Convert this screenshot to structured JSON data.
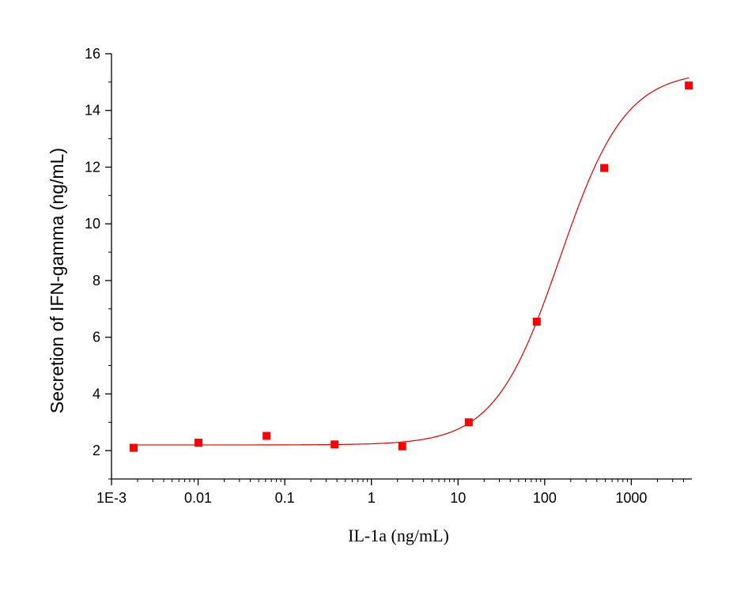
{
  "chart_data": {
    "type": "scatter",
    "title": "",
    "xlabel": "IL-1a (ng/mL)",
    "ylabel": "Secretion of IFN-gamma (ng/mL)",
    "x_scale": "log",
    "xlim": [
      0.001,
      5000
    ],
    "ylim": [
      1,
      16
    ],
    "x_ticks": [
      0.001,
      0.01,
      0.1,
      1,
      10,
      100,
      1000
    ],
    "x_tick_labels": [
      "1E-3",
      "0.01",
      "0.1",
      "1",
      "10",
      "100",
      "1000"
    ],
    "y_ticks": [
      2,
      4,
      6,
      8,
      10,
      12,
      14,
      16
    ],
    "y_tick_labels": [
      "2",
      "4",
      "6",
      "8",
      "10",
      "12",
      "14",
      "16"
    ],
    "grid": false,
    "marker_color": "#ff0000",
    "line_color": "#e00000",
    "series": [
      {
        "x": [
          0.0018,
          0.0101,
          0.0617,
          0.376,
          2.27,
          13.3,
          81.0,
          486.0,
          4610.0
        ],
        "y": [
          2.1,
          2.28,
          2.52,
          2.22,
          2.15,
          3.0,
          6.55,
          11.97,
          14.88
        ]
      }
    ],
    "fit": {
      "type": "logistic-4pl",
      "bottom": 2.2,
      "top": 15.4,
      "ec50": 150,
      "hill": 1.15
    }
  }
}
